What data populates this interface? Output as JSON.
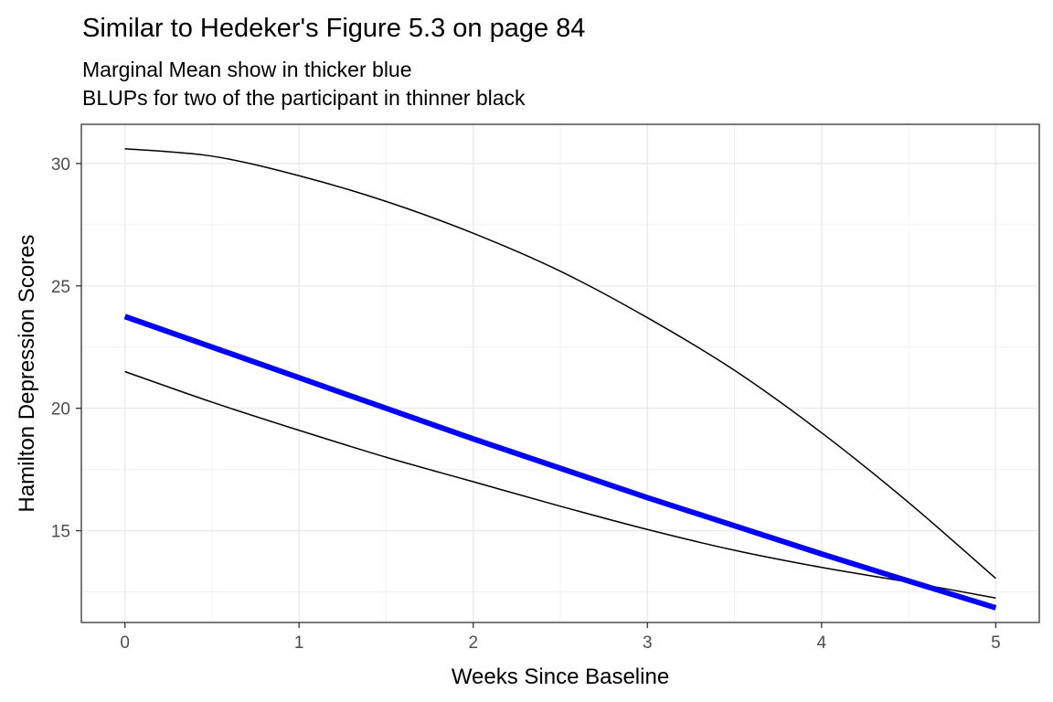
{
  "chart_data": {
    "type": "line",
    "title": "Similar to Hedeker's Figure 5.3 on page 84",
    "subtitle_lines": [
      "Marginal Mean show in thicker blue",
      "BLUPs for two of the participant in thinner black"
    ],
    "xlabel": "Weeks Since Baseline",
    "ylabel": "Hamilton Depression Scores",
    "xlim": [
      -0.25,
      5.25
    ],
    "ylim": [
      11.25,
      31.6
    ],
    "x_ticks": [
      0,
      1,
      2,
      3,
      4,
      5
    ],
    "y_ticks": [
      15,
      20,
      25,
      30
    ],
    "grid": true,
    "series": [
      {
        "color": "#0000ff",
        "line_style": "thick",
        "x": [
          0,
          1,
          2,
          3,
          4,
          5
        ],
        "y": [
          23.75,
          21.25,
          18.75,
          16.35,
          14.05,
          11.85
        ]
      },
      {
        "color": "#000000",
        "line_style": "thin",
        "x": [
          0,
          0.5,
          1,
          1.5,
          2,
          2.5,
          3,
          3.5,
          4,
          4.5,
          5
        ],
        "y": [
          30.6,
          30.3,
          29.5,
          28.45,
          27.15,
          25.6,
          23.7,
          21.55,
          19.0,
          16.15,
          13.05
        ]
      },
      {
        "color": "#000000",
        "line_style": "thin",
        "x": [
          0,
          0.5,
          1,
          1.5,
          2,
          2.5,
          3,
          3.5,
          4,
          4.5,
          5
        ],
        "y": [
          21.5,
          20.25,
          19.1,
          18.0,
          17.0,
          16.0,
          15.05,
          14.2,
          13.5,
          12.9,
          12.25
        ]
      }
    ]
  }
}
